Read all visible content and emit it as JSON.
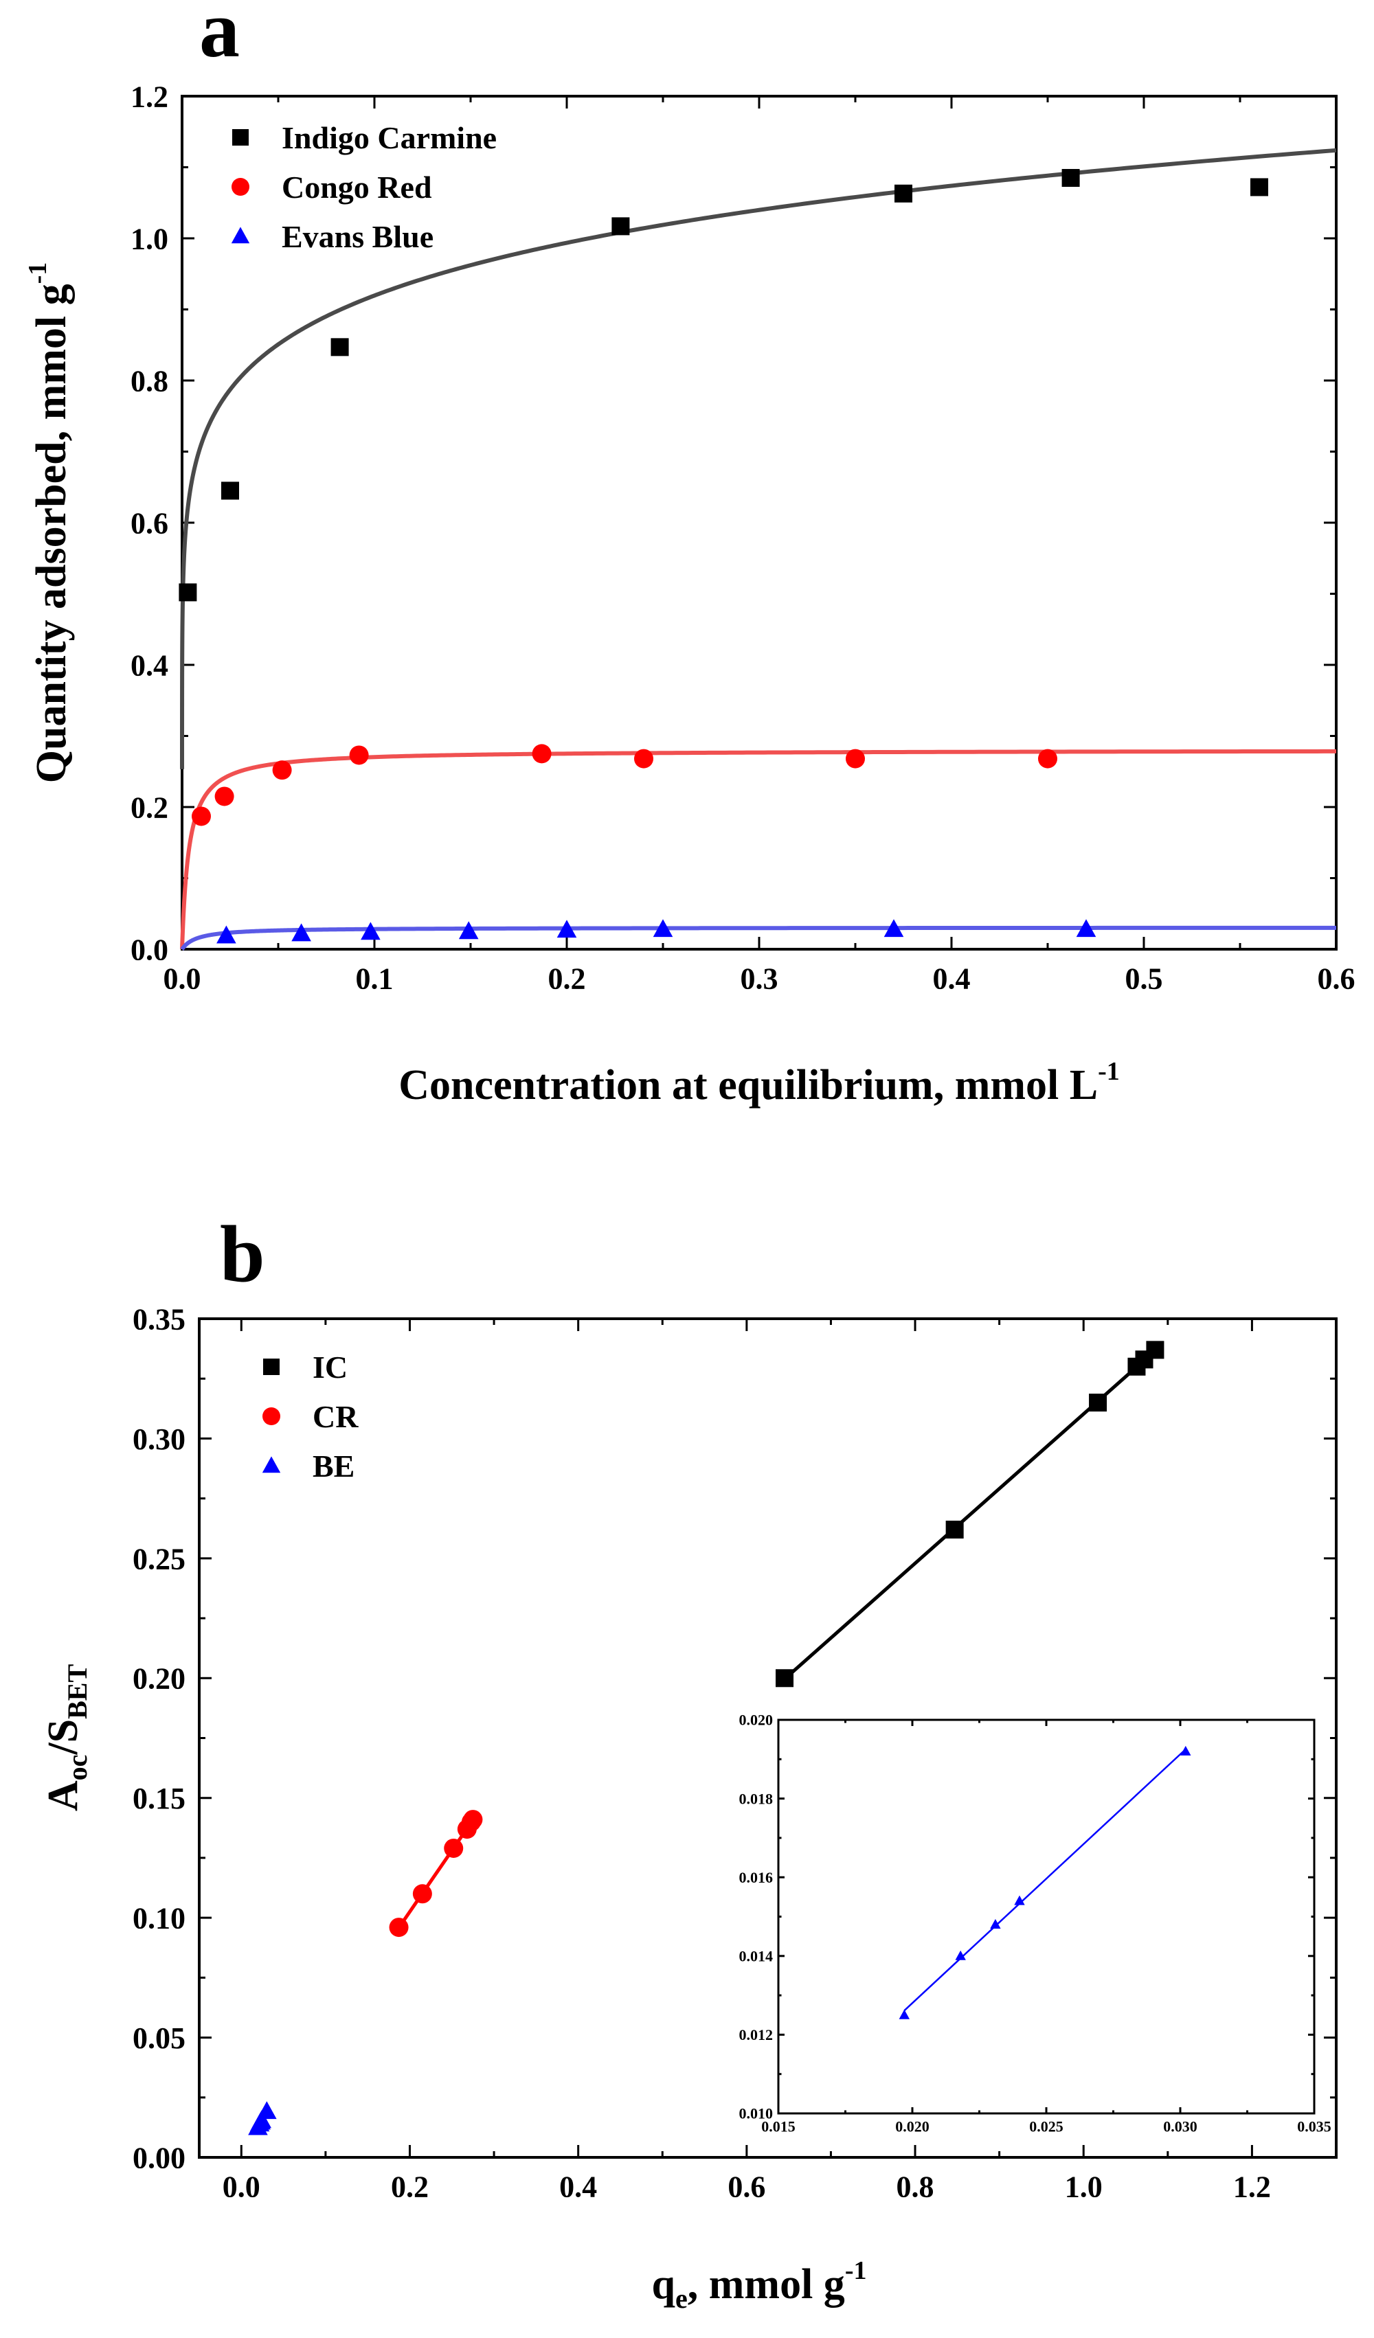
{
  "chart_data": [
    {
      "panel": "a",
      "type": "scatter",
      "title": "",
      "xlabel": "Concentration at equilibrium, mmol L",
      "xlabel_sup": "-1",
      "ylabel": "Quantity adsorbed, mmol g",
      "ylabel_sup": "-1",
      "xlim": [
        0,
        0.6
      ],
      "ylim": [
        0,
        1.2
      ],
      "xticks": [
        0.0,
        0.1,
        0.2,
        0.3,
        0.4,
        0.5,
        0.6
      ],
      "xtick_labels": [
        "0.0",
        "0.1",
        "0.2",
        "0.3",
        "0.4",
        "0.5",
        "0.6"
      ],
      "yticks": [
        0.0,
        0.2,
        0.4,
        0.6,
        0.8,
        1.0,
        1.2
      ],
      "ytick_labels": [
        "0.0",
        "0.2",
        "0.4",
        "0.6",
        "0.8",
        "1.0",
        "1.2"
      ],
      "legend_position": "top-left",
      "series": [
        {
          "name": "Indigo Carmine",
          "marker": "square",
          "color": "#000000",
          "fit_color": "#4a4a4a",
          "x": [
            0.003,
            0.025,
            0.082,
            0.228,
            0.375,
            0.462,
            0.56
          ],
          "y": [
            0.502,
            0.645,
            0.847,
            1.017,
            1.063,
            1.085,
            1.072
          ],
          "fit": {
            "model": "freundlich",
            "K": 1.19,
            "n": 0.112
          }
        },
        {
          "name": "Congo Red",
          "marker": "circle",
          "color": "#ff0000",
          "fit_color": "#f05050",
          "x": [
            0.01,
            0.022,
            0.052,
            0.092,
            0.187,
            0.24,
            0.35,
            0.45
          ],
          "y": [
            0.187,
            0.215,
            0.252,
            0.273,
            0.275,
            0.268,
            0.268,
            0.268
          ],
          "fit": {
            "model": "langmuir",
            "qmax": 0.28,
            "K": 280
          }
        },
        {
          "name": "Evans Blue",
          "marker": "triangle",
          "color": "#0000ff",
          "fit_color": "#5a5ae6",
          "x": [
            0.023,
            0.062,
            0.098,
            0.149,
            0.2,
            0.25,
            0.37,
            0.47
          ],
          "y": [
            0.019,
            0.022,
            0.024,
            0.025,
            0.027,
            0.028,
            0.028,
            0.028
          ],
          "fit": {
            "model": "langmuir",
            "qmax": 0.0305,
            "K": 130
          }
        }
      ]
    },
    {
      "panel": "b",
      "type": "scatter",
      "title": "",
      "xlabel": "q",
      "xlabel_sub": "e",
      "xlabel_rest": ", mmol g",
      "xlabel_sup": "-1",
      "ylabel": "A",
      "ylabel_sub1": "oc",
      "ylabel_mid": "/S",
      "ylabel_sub2": "BET",
      "xlim": [
        -0.05,
        1.3
      ],
      "ylim": [
        0,
        0.35
      ],
      "xticks": [
        0.0,
        0.2,
        0.4,
        0.6,
        0.8,
        1.0,
        1.2
      ],
      "xtick_labels": [
        "0.0",
        "0.2",
        "0.4",
        "0.6",
        "0.8",
        "1.0",
        "1.2"
      ],
      "yticks": [
        0.0,
        0.05,
        0.1,
        0.15,
        0.2,
        0.25,
        0.3,
        0.35
      ],
      "ytick_labels": [
        "0.00",
        "0.05",
        "0.10",
        "0.15",
        "0.20",
        "0.25",
        "0.30",
        "0.35"
      ],
      "legend_position": "top-left",
      "series": [
        {
          "name": "IC",
          "marker": "square",
          "color": "#000000",
          "x": [
            0.645,
            0.847,
            1.017,
            1.063,
            1.072,
            1.085
          ],
          "y": [
            0.2,
            0.262,
            0.315,
            0.33,
            0.333,
            0.337
          ]
        },
        {
          "name": "CR",
          "marker": "circle",
          "color": "#ff0000",
          "x": [
            0.187,
            0.215,
            0.252,
            0.268,
            0.273,
            0.275
          ],
          "y": [
            0.096,
            0.11,
            0.129,
            0.137,
            0.14,
            0.141
          ]
        },
        {
          "name": "BE",
          "marker": "triangle",
          "color": "#0000ff",
          "x": [
            0.0197,
            0.0218,
            0.0231,
            0.024,
            0.0302
          ],
          "y": [
            0.0125,
            0.014,
            0.0148,
            0.0154,
            0.0192
          ]
        }
      ],
      "inset": {
        "type": "scatter",
        "xlim": [
          0.015,
          0.035
        ],
        "ylim": [
          0.01,
          0.02
        ],
        "xticks": [
          0.015,
          0.02,
          0.025,
          0.03,
          0.035
        ],
        "xtick_labels": [
          "0.015",
          "0.020",
          "0.025",
          "0.030",
          "0.035"
        ],
        "yticks": [
          0.01,
          0.012,
          0.014,
          0.016,
          0.018,
          0.02
        ],
        "ytick_labels": [
          "0.010",
          "0.012",
          "0.014",
          "0.016",
          "0.018",
          "0.020"
        ],
        "series": [
          {
            "name": "BE",
            "marker": "triangle",
            "color": "#0000ff",
            "x": [
              0.0197,
              0.0218,
              0.0231,
              0.024,
              0.0302
            ],
            "y": [
              0.0125,
              0.014,
              0.0148,
              0.0154,
              0.0192
            ]
          }
        ]
      }
    }
  ]
}
